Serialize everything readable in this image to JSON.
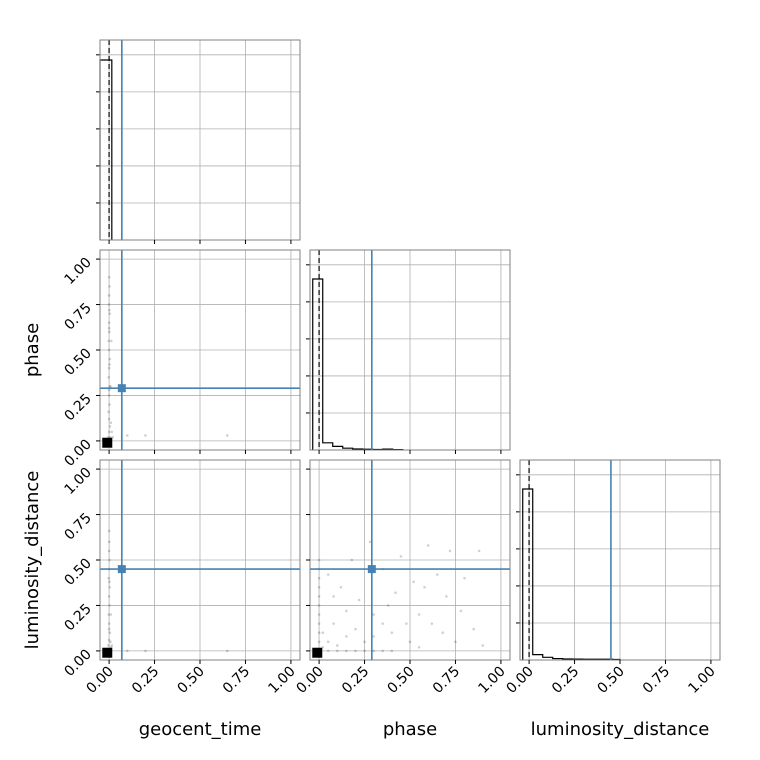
{
  "chart_data": {
    "type": "corner",
    "parameters": [
      "geocent_time",
      "phase",
      "luminosity_distance"
    ],
    "axis_range": [
      -0.05,
      1.05
    ],
    "ticks": [
      0.0,
      0.25,
      0.5,
      0.75,
      1.0
    ],
    "tick_labels": [
      "0.00",
      "0.25",
      "0.50",
      "0.75",
      "1.00"
    ],
    "grid": true,
    "truths": {
      "geocent_time": 0.07,
      "phase": 0.29,
      "luminosity_distance": 0.45
    },
    "quantile_lines": {
      "geocent_time": 0.0,
      "phase": 0.0,
      "luminosity_distance": 0.0
    },
    "histograms": {
      "geocent_time": [
        {
          "x0": -0.05,
          "x1": 0.015,
          "h": 1.0
        }
      ],
      "phase": [
        {
          "x0": -0.035,
          "x1": 0.02,
          "h": 0.95
        },
        {
          "x0": 0.02,
          "x1": 0.075,
          "h": 0.04
        },
        {
          "x0": 0.075,
          "x1": 0.13,
          "h": 0.02
        },
        {
          "x0": 0.13,
          "x1": 0.185,
          "h": 0.01
        },
        {
          "x0": 0.185,
          "x1": 0.24,
          "h": 0.006
        },
        {
          "x0": 0.24,
          "x1": 0.295,
          "h": 0.004
        },
        {
          "x0": 0.295,
          "x1": 0.35,
          "h": 0.003
        },
        {
          "x0": 0.35,
          "x1": 0.405,
          "h": 0.005
        },
        {
          "x0": 0.405,
          "x1": 0.46,
          "h": 0.002
        }
      ],
      "luminosity_distance": [
        {
          "x0": -0.035,
          "x1": 0.02,
          "h": 0.95
        },
        {
          "x0": 0.02,
          "x1": 0.075,
          "h": 0.03
        },
        {
          "x0": 0.075,
          "x1": 0.13,
          "h": 0.015
        },
        {
          "x0": 0.13,
          "x1": 0.185,
          "h": 0.008
        },
        {
          "x0": 0.185,
          "x1": 0.24,
          "h": 0.006
        },
        {
          "x0": 0.24,
          "x1": 0.295,
          "h": 0.005
        },
        {
          "x0": 0.295,
          "x1": 0.35,
          "h": 0.004
        },
        {
          "x0": 0.35,
          "x1": 0.405,
          "h": 0.004
        },
        {
          "x0": 0.405,
          "x1": 0.46,
          "h": 0.004
        },
        {
          "x0": 0.46,
          "x1": 0.5,
          "h": 0.003
        }
      ]
    },
    "scatter": {
      "phase_vs_geocent_time": [
        [
          0.0,
          0.0
        ],
        [
          -0.005,
          0.02
        ],
        [
          0.0,
          0.05
        ],
        [
          0.005,
          0.08
        ],
        [
          0.0,
          0.12
        ],
        [
          -0.003,
          0.16
        ],
        [
          0.002,
          0.2
        ],
        [
          0.0,
          0.25
        ],
        [
          0.003,
          0.3
        ],
        [
          -0.002,
          0.35
        ],
        [
          0.0,
          0.4
        ],
        [
          0.004,
          0.45
        ],
        [
          0.0,
          0.5
        ],
        [
          -0.002,
          0.55
        ],
        [
          0.001,
          0.6
        ],
        [
          0.0,
          0.65
        ],
        [
          0.003,
          0.7
        ],
        [
          -0.001,
          0.75
        ],
        [
          0.0,
          0.8
        ],
        [
          0.002,
          0.85
        ],
        [
          0.0,
          0.9
        ],
        [
          0.01,
          0.1
        ],
        [
          0.008,
          0.3
        ],
        [
          0.012,
          0.55
        ],
        [
          0.015,
          0.05
        ],
        [
          0.1,
          0.03
        ],
        [
          0.2,
          0.03
        ],
        [
          0.65,
          0.03
        ],
        [
          0.005,
          0.02
        ],
        [
          0.01,
          0.01
        ],
        [
          0.02,
          0.02
        ],
        [
          0.0,
          0.28
        ],
        [
          0.002,
          0.42
        ],
        [
          0.0,
          0.62
        ],
        [
          0.001,
          0.72
        ]
      ],
      "luminosity_distance_vs_geocent_time": [
        [
          0.0,
          0.0
        ],
        [
          -0.004,
          0.03
        ],
        [
          0.0,
          0.06
        ],
        [
          0.004,
          0.1
        ],
        [
          0.0,
          0.15
        ],
        [
          -0.002,
          0.2
        ],
        [
          0.002,
          0.25
        ],
        [
          0.0,
          0.3
        ],
        [
          0.003,
          0.35
        ],
        [
          -0.002,
          0.4
        ],
        [
          0.0,
          0.45
        ],
        [
          0.002,
          0.5
        ],
        [
          0.0,
          0.55
        ],
        [
          0.001,
          0.6
        ],
        [
          0.0,
          0.66
        ],
        [
          0.008,
          0.05
        ],
        [
          0.01,
          0.2
        ],
        [
          0.012,
          0.02
        ],
        [
          0.1,
          0.0
        ],
        [
          0.2,
          0.0
        ],
        [
          0.65,
          0.0
        ],
        [
          0.005,
          0.01
        ],
        [
          0.015,
          0.03
        ],
        [
          0.0,
          0.12
        ],
        [
          0.002,
          0.38
        ]
      ],
      "luminosity_distance_vs_phase": [
        [
          0.0,
          0.0
        ],
        [
          0.05,
          0.0
        ],
        [
          0.1,
          0.0
        ],
        [
          0.15,
          0.0
        ],
        [
          0.2,
          0.0
        ],
        [
          0.25,
          0.0
        ],
        [
          0.3,
          0.0
        ],
        [
          0.35,
          0.0
        ],
        [
          0.4,
          0.0
        ],
        [
          0.02,
          0.02
        ],
        [
          0.0,
          0.05
        ],
        [
          0.0,
          0.1
        ],
        [
          0.0,
          0.15
        ],
        [
          0.0,
          0.2
        ],
        [
          0.0,
          0.25
        ],
        [
          0.0,
          0.3
        ],
        [
          0.0,
          0.35
        ],
        [
          0.0,
          0.4
        ],
        [
          0.0,
          0.45
        ],
        [
          0.0,
          0.5
        ],
        [
          0.02,
          0.1
        ],
        [
          0.05,
          0.05
        ],
        [
          0.08,
          0.15
        ],
        [
          0.1,
          0.03
        ],
        [
          0.15,
          0.08
        ],
        [
          0.2,
          0.12
        ],
        [
          0.22,
          0.28
        ],
        [
          0.25,
          0.05
        ],
        [
          0.3,
          0.2
        ],
        [
          0.35,
          0.45
        ],
        [
          0.4,
          0.1
        ],
        [
          0.42,
          0.32
        ],
        [
          0.45,
          0.52
        ],
        [
          0.5,
          0.05
        ],
        [
          0.52,
          0.38
        ],
        [
          0.55,
          0.2
        ],
        [
          0.6,
          0.58
        ],
        [
          0.62,
          0.15
        ],
        [
          0.65,
          0.42
        ],
        [
          0.68,
          0.1
        ],
        [
          0.7,
          0.3
        ],
        [
          0.72,
          0.55
        ],
        [
          0.75,
          0.05
        ],
        [
          0.78,
          0.22
        ],
        [
          0.8,
          0.4
        ],
        [
          0.85,
          0.12
        ],
        [
          0.88,
          0.55
        ],
        [
          0.9,
          0.03
        ],
        [
          0.12,
          0.35
        ],
        [
          0.18,
          0.5
        ],
        [
          0.28,
          0.6
        ],
        [
          0.38,
          0.25
        ],
        [
          0.48,
          0.15
        ],
        [
          0.58,
          0.35
        ],
        [
          0.3,
          0.08
        ],
        [
          0.08,
          0.3
        ],
        [
          0.05,
          0.42
        ],
        [
          0.15,
          0.22
        ],
        [
          0.35,
          0.15
        ],
        [
          0.55,
          0.02
        ]
      ]
    },
    "colors": {
      "truth": "#4682b4",
      "hist": "#000000",
      "grid": "#b0b0b0",
      "frame": "#808080"
    }
  }
}
